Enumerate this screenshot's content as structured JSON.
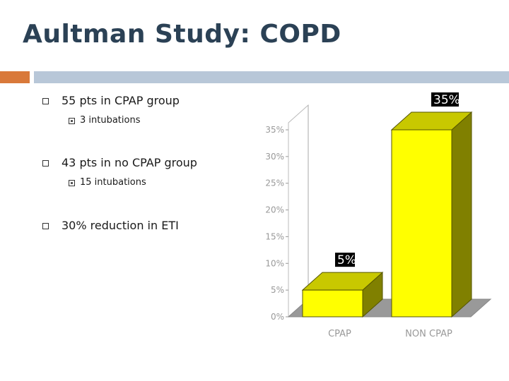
{
  "slide": {
    "title": "Aultman Study: COPD",
    "bullets": [
      {
        "text": "55 pts in CPAP group",
        "sub": [
          "3 intubations"
        ]
      },
      {
        "text": "43 pts in no CPAP group",
        "sub": [
          "15 intubations"
        ]
      },
      {
        "text": "30% reduction in ETI",
        "sub": []
      }
    ]
  },
  "colors": {
    "title": "#2b4155",
    "accent": "#d9793a",
    "rule": "#b8c7d8",
    "bar_front": "#ffff00",
    "bar_side": "#808000",
    "bar_top": "#c8c800",
    "floor": "#999999"
  },
  "chart_data": {
    "type": "bar",
    "categories": [
      "CPAP",
      "NON CPAP"
    ],
    "values": [
      5,
      35
    ],
    "data_labels": [
      "5%",
      "35%"
    ],
    "yticks": [
      "0%",
      "5%",
      "10%",
      "15%",
      "20%",
      "25%",
      "30%",
      "35%"
    ],
    "ylim": [
      0,
      35
    ],
    "grid": false,
    "legend": "none",
    "style": "3d"
  }
}
